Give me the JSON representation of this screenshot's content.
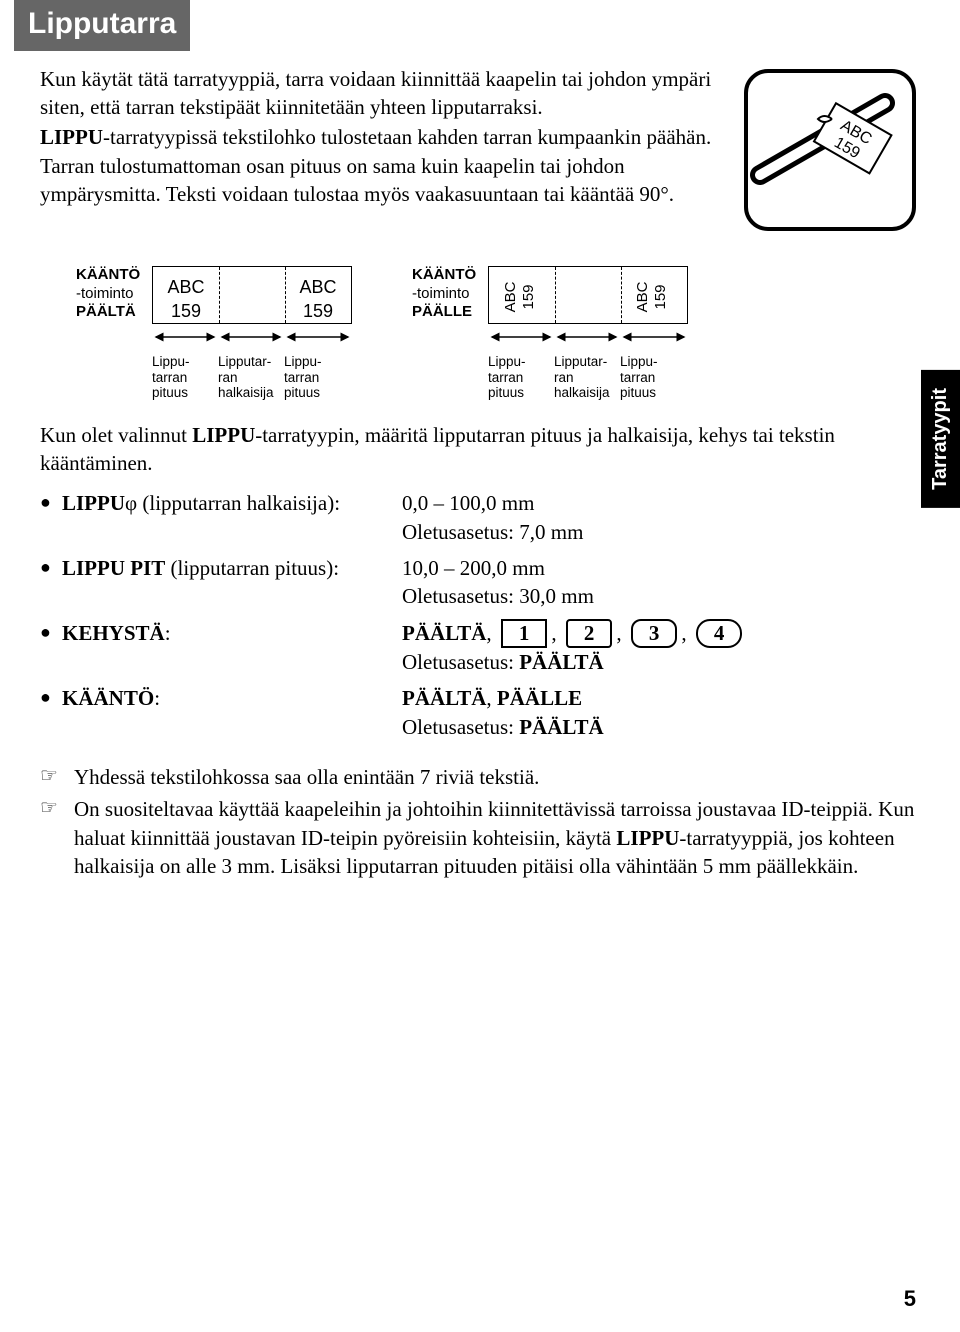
{
  "title": "Lipputarra",
  "side_tab": "Tarratyypit",
  "intro": {
    "p1": "Kun käytät tätä tarratyyppiä, tarra voidaan kiinnittää kaapelin tai johdon ympäri siten, että tarran tekstipäät kiinnitetään yhteen lipputarraksi.",
    "p2_a": "LIPPU",
    "p2_b": "-tarratyypissä tekstilohko tulostetaan kahden tarran kumpaankin päähän. Tarran tulostumattoman osan pituus on sama kuin kaapelin tai johdon ympärysmitta. Teksti voidaan tulostaa myös vaakasuuntaan tai kääntää 90°."
  },
  "diagram": {
    "left_label_bold1": "KÄÄNTÖ",
    "left_label_plain": "-toiminto",
    "left_label_bold2": "PÄÄLTÄ",
    "right_label_bold1": "KÄÄNTÖ",
    "right_label_plain": "-toiminto",
    "right_label_bold2": "PÄÄLLE",
    "abc": "ABC",
    "num": "159",
    "arrow_labels": {
      "a": "Lippu-\ntarran\npituus",
      "b": "Lipputar-\nran\nhalkaisija",
      "c": "Lippu-\ntarran\npituus"
    }
  },
  "mid_text_a": "Kun olet valinnut ",
  "mid_text_b": "LIPPU",
  "mid_text_c": "-tarratyypin, määritä lipputarran pituus ja halkaisija, kehys tai tekstin kääntäminen.",
  "settings": [
    {
      "label_b": "LIPPU",
      "label_rest": "φ (lipputarran halkaisija):",
      "value": "0,0 – 100,0 mm",
      "default": "Oletusasetus: 7,0 mm"
    },
    {
      "label_b": "LIPPU PIT",
      "label_rest": " (lipputarran pituus):",
      "value": "10,0 – 200,0 mm",
      "default": "Oletusasetus: 30,0 mm"
    },
    {
      "label_b": "KEHYSTÄ",
      "label_rest": ":",
      "value_b": "PÄÄLTÄ",
      "frames": [
        "1",
        "2",
        "3",
        "4"
      ],
      "default_a": "Oletusasetus: ",
      "default_b": "PÄÄLTÄ"
    },
    {
      "label_b": "KÄÄNTÖ",
      "label_rest": ":",
      "value_b1": "PÄÄLTÄ",
      "value_sep": ", ",
      "value_b2": "PÄÄLLE",
      "default_a": "Oletusasetus: ",
      "default_b": "PÄÄLTÄ"
    }
  ],
  "notes": {
    "n1": "Yhdessä tekstilohkossa saa olla enintään 7 riviä tekstiä.",
    "n2_a": "On suositeltavaa käyttää kaapeleihin ja johtoihin kiinnitettävissä tarroissa joustavaa ID-teippiä. Kun haluat kiinnittää joustavan ID-teipin pyöreisiin kohteisiin, käytä ",
    "n2_b": "LIPPU",
    "n2_c": "-tarratyyppiä, jos kohteen halkaisija on alle 3 mm. Lisäksi lipputarran pituuden pitäisi olla vähintään 5 mm päällekkäin."
  },
  "page_number": "5",
  "colors": {
    "bar_bg": "#666666",
    "text": "#000000"
  }
}
